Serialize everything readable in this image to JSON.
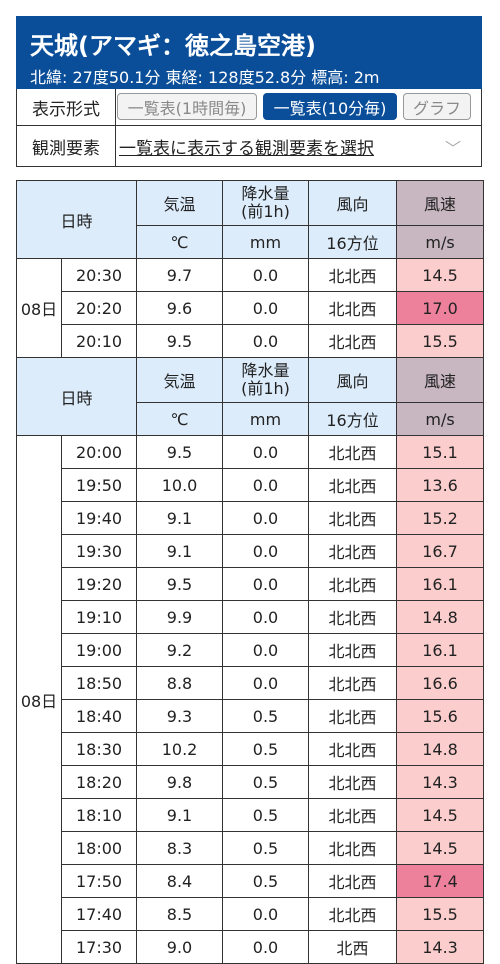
{
  "station": {
    "title": "天城(アマギ：徳之島空港)",
    "coords": "北緯: 27度50.1分 東経: 128度52.8分 標高: 2m"
  },
  "controls": {
    "format_label": "表示形式",
    "btn_hourly": "一覧表(1時間毎)",
    "btn_10min": "一覧表(10分毎)",
    "btn_graph": "グラフ",
    "elements_label": "観測要素",
    "elements_select": "一覧表に表示する観測要素を選択"
  },
  "headers": {
    "datetime": "日時",
    "temp": "気温",
    "precip_l1": "降水量",
    "precip_l2": "(前1h)",
    "wind_dir": "風向",
    "wind_speed": "風速",
    "unit_temp": "℃",
    "unit_precip": "mm",
    "unit_dir": "16方位",
    "unit_speed": "m/s"
  },
  "groups": [
    {
      "day": "08日",
      "rows": [
        {
          "time": "20:30",
          "temp": "9.7",
          "precip": "0.0",
          "dir": "北北西",
          "speed": "14.5",
          "level": "p"
        },
        {
          "time": "20:20",
          "temp": "9.6",
          "precip": "0.0",
          "dir": "北北西",
          "speed": "17.0",
          "level": "s"
        },
        {
          "time": "20:10",
          "temp": "9.5",
          "precip": "0.0",
          "dir": "北北西",
          "speed": "15.5",
          "level": "p"
        }
      ]
    },
    {
      "day": "08日",
      "rows": [
        {
          "time": "20:00",
          "temp": "9.5",
          "precip": "0.0",
          "dir": "北北西",
          "speed": "15.1",
          "level": "p"
        },
        {
          "time": "19:50",
          "temp": "10.0",
          "precip": "0.0",
          "dir": "北北西",
          "speed": "13.6",
          "level": "p"
        },
        {
          "time": "19:40",
          "temp": "9.1",
          "precip": "0.0",
          "dir": "北北西",
          "speed": "15.2",
          "level": "p"
        },
        {
          "time": "19:30",
          "temp": "9.1",
          "precip": "0.0",
          "dir": "北北西",
          "speed": "16.7",
          "level": "p"
        },
        {
          "time": "19:20",
          "temp": "9.5",
          "precip": "0.0",
          "dir": "北北西",
          "speed": "16.1",
          "level": "p"
        },
        {
          "time": "19:10",
          "temp": "9.9",
          "precip": "0.0",
          "dir": "北北西",
          "speed": "14.8",
          "level": "p"
        },
        {
          "time": "19:00",
          "temp": "9.2",
          "precip": "0.0",
          "dir": "北北西",
          "speed": "16.1",
          "level": "p"
        },
        {
          "time": "18:50",
          "temp": "8.8",
          "precip": "0.0",
          "dir": "北北西",
          "speed": "16.6",
          "level": "p"
        },
        {
          "time": "18:40",
          "temp": "9.3",
          "precip": "0.5",
          "dir": "北北西",
          "speed": "15.6",
          "level": "p"
        },
        {
          "time": "18:30",
          "temp": "10.2",
          "precip": "0.5",
          "dir": "北北西",
          "speed": "14.8",
          "level": "p"
        },
        {
          "time": "18:20",
          "temp": "9.8",
          "precip": "0.5",
          "dir": "北北西",
          "speed": "14.3",
          "level": "p"
        },
        {
          "time": "18:10",
          "temp": "9.1",
          "precip": "0.5",
          "dir": "北北西",
          "speed": "14.5",
          "level": "p"
        },
        {
          "time": "18:00",
          "temp": "8.3",
          "precip": "0.5",
          "dir": "北北西",
          "speed": "14.5",
          "level": "p"
        },
        {
          "time": "17:50",
          "temp": "8.4",
          "precip": "0.5",
          "dir": "北北西",
          "speed": "17.4",
          "level": "s"
        },
        {
          "time": "17:40",
          "temp": "8.5",
          "precip": "0.0",
          "dir": "北北西",
          "speed": "15.5",
          "level": "p"
        },
        {
          "time": "17:30",
          "temp": "9.0",
          "precip": "0.0",
          "dir": "北西",
          "speed": "14.3",
          "level": "p"
        }
      ]
    }
  ]
}
